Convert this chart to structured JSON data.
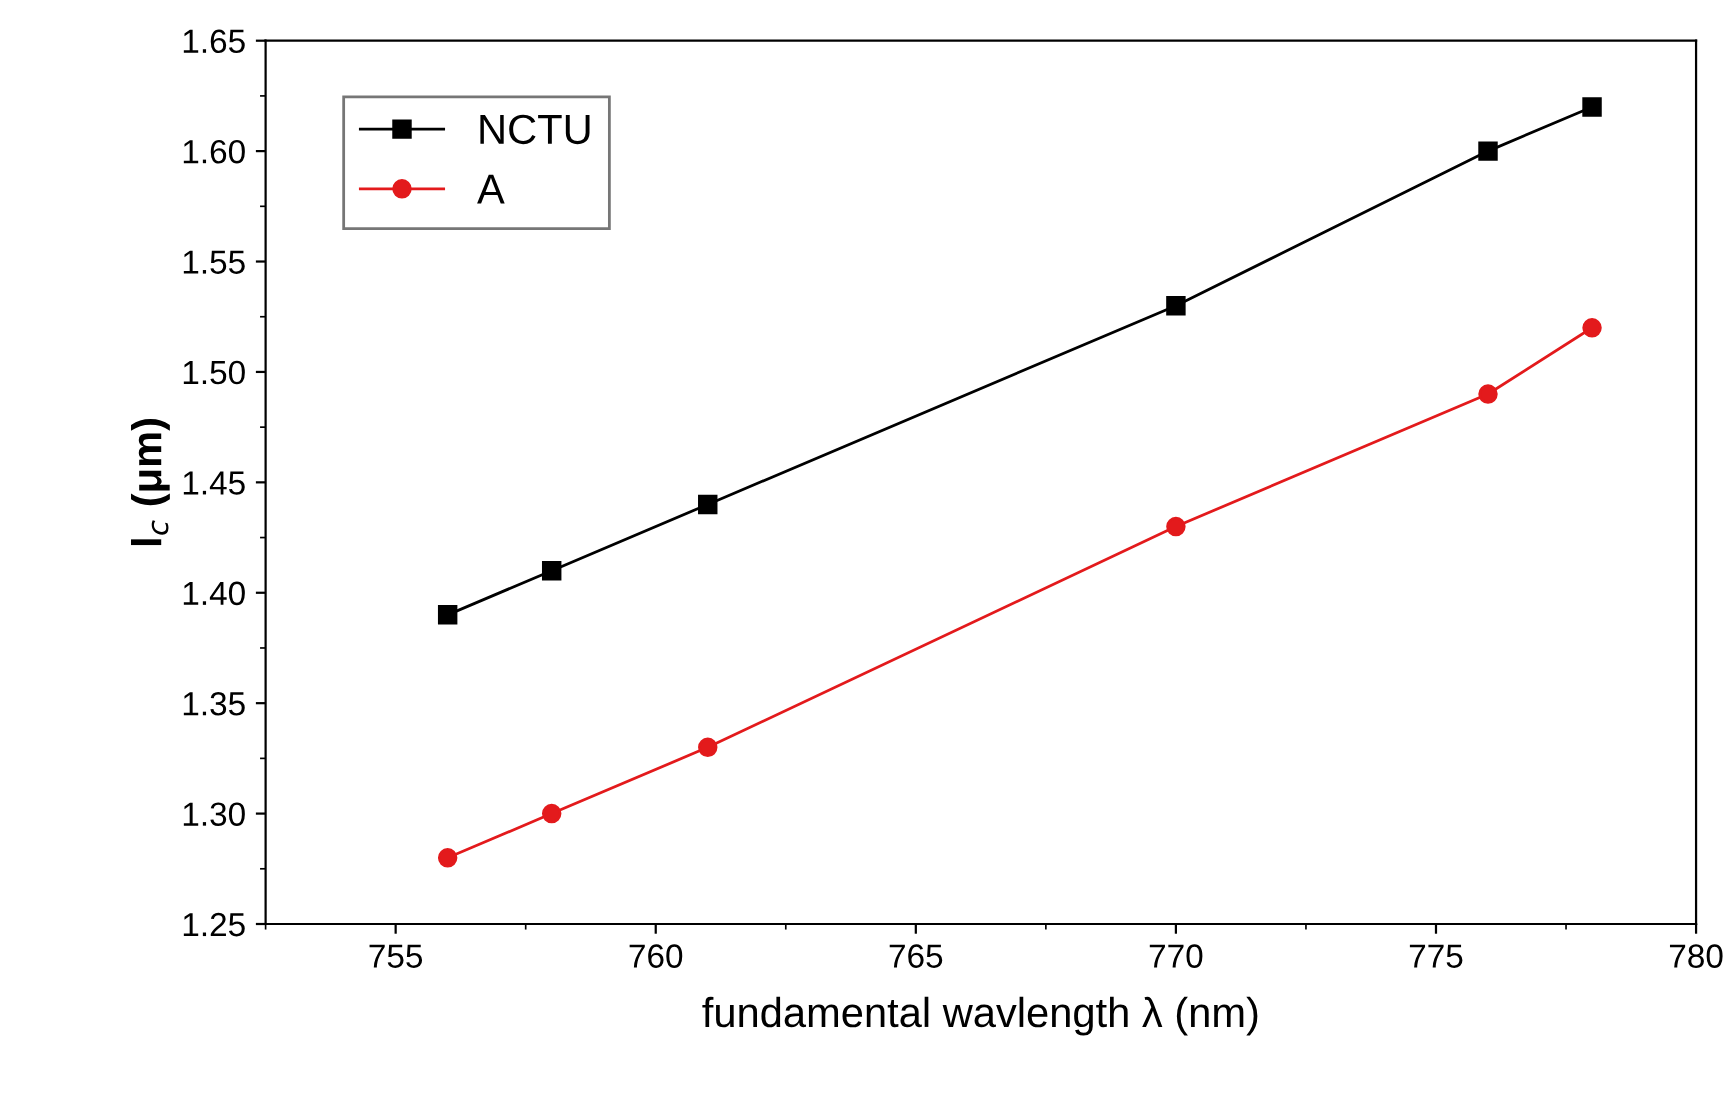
{
  "chart_data": {
    "type": "line",
    "xlabel": "fundamental wavlength λ (nm)",
    "ylabel": "l$_{c}$ (μm)",
    "x": [
      756,
      758,
      761,
      770,
      776,
      778
    ],
    "series": [
      {
        "name": "NCTU",
        "color": "#000000",
        "marker": "square",
        "values": [
          1.39,
          1.41,
          1.44,
          1.53,
          1.6,
          1.62
        ]
      },
      {
        "name": "A",
        "color": "#e31a1c",
        "marker": "circle",
        "values": [
          1.28,
          1.3,
          1.33,
          1.43,
          1.49,
          1.52
        ]
      }
    ],
    "xlim": [
      752.5,
      780
    ],
    "xticks": [
      755,
      760,
      765,
      770,
      775,
      780
    ],
    "ylim": [
      1.25,
      1.65
    ],
    "yticks": [
      1.25,
      {
        "value": 1.3,
        "label": "1.30"
      },
      1.35,
      {
        "value": 1.4,
        "label": "1.40"
      },
      1.45,
      {
        "value": 1.5,
        "label": "1.50"
      },
      1.55,
      {
        "value": 1.6,
        "label": "1.60"
      },
      1.65
    ],
    "grid": false,
    "legend": "top left",
    "line_style": "solid"
  }
}
